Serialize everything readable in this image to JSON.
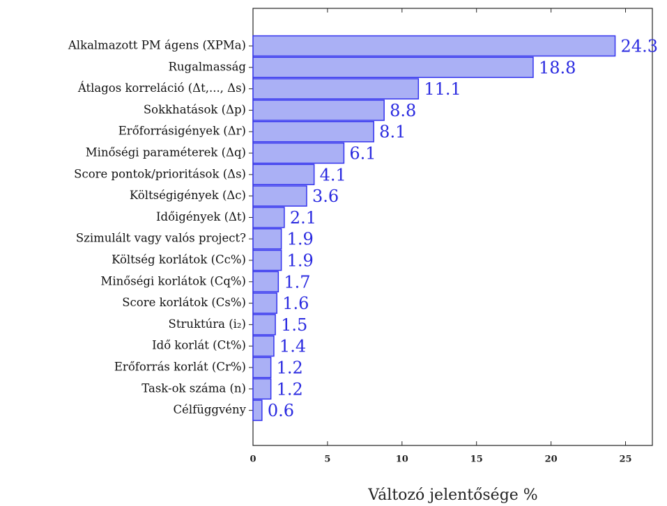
{
  "chart_data": {
    "type": "barh",
    "xlabel": "Változó jelentősége %",
    "categories": [
      "Alkalmazott PM ágens (XPMa)",
      "Rugalmasság",
      "Átlagos korreláció (Δt,..., Δs)",
      "Sokkhatások (Δp)",
      "Erőforrásigények (Δr)",
      "Minőségi paraméterek (Δq)",
      "Score pontok/prioritások (Δs)",
      "Költségigények (Δc)",
      "Időigények (Δt)",
      "Szimulált vagy valós project?",
      "Költség korlátok (Cc%)",
      "Minőségi korlátok (Cq%)",
      "Score korlátok (Cs%)",
      "Struktúra (i₂)",
      "Idő korlát (Ct%)",
      "Erőforrás korlát (Cr%)",
      "Task-ok száma (n)",
      "Célfüggvény"
    ],
    "values": [
      24.3,
      18.8,
      11.1,
      8.8,
      8.1,
      6.1,
      4.1,
      3.6,
      2.1,
      1.9,
      1.9,
      1.7,
      1.6,
      1.5,
      1.4,
      1.2,
      1.2,
      0.6
    ],
    "color": "#aab0f5",
    "edgecolor": "#3333ee",
    "label_color": "#2a2ae0",
    "xlim": [
      0,
      26.8
    ],
    "xticks": [
      0,
      5,
      10,
      15,
      20,
      25
    ]
  }
}
